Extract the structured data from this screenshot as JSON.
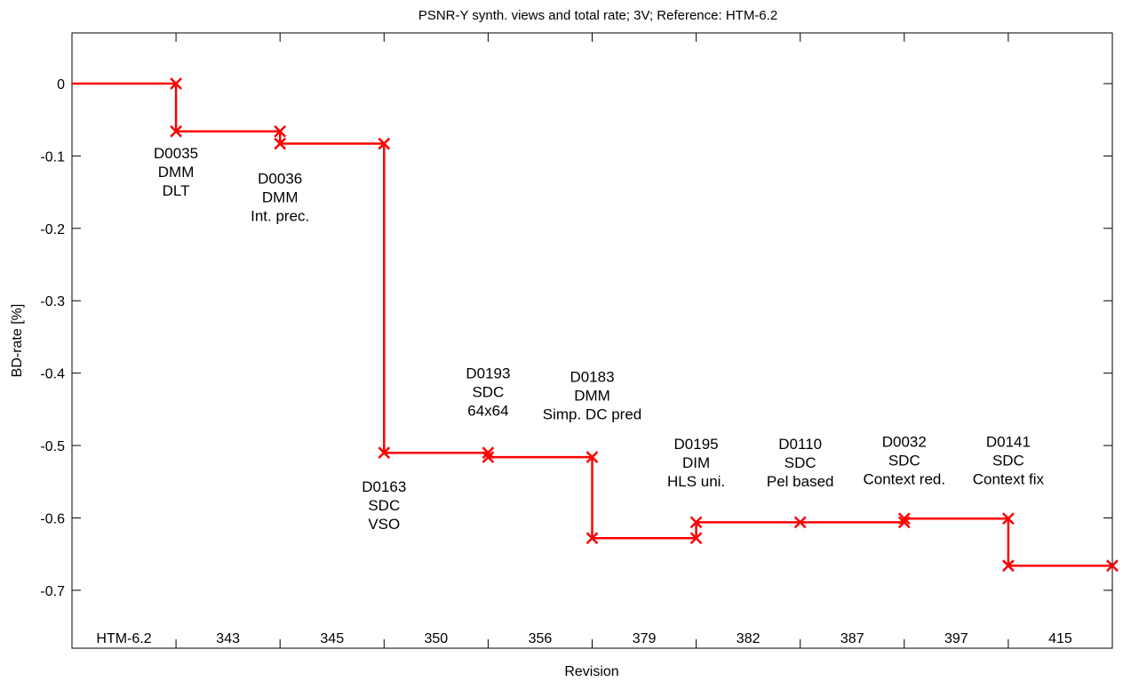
{
  "chart_data": {
    "type": "line",
    "title": "PSNR-Y synth. views and total rate; 3V; Reference: HTM-6.2",
    "xlabel": "Revision",
    "ylabel": "BD-rate [%]",
    "ylim": [
      -0.78,
      0.07
    ],
    "yticks": [
      0,
      -0.1,
      -0.2,
      -0.3,
      -0.4,
      -0.5,
      -0.6,
      -0.7
    ],
    "ytick_labels": [
      "0",
      "-0.1",
      "-0.2",
      "-0.3",
      "-0.4",
      "-0.5",
      "-0.6",
      "-0.7"
    ],
    "xlim": [
      0,
      10
    ],
    "grid": false,
    "line_color": "#ff0000",
    "revisions": [
      "HTM-6.2",
      "343",
      "345",
      "350",
      "356",
      "379",
      "382",
      "387",
      "397",
      "415"
    ],
    "points": [
      {
        "x": 1,
        "before": 0,
        "after": -0.066
      },
      {
        "x": 2,
        "before": -0.066,
        "after": -0.083
      },
      {
        "x": 3,
        "before": -0.083,
        "after": -0.51
      },
      {
        "x": 4,
        "before": -0.51,
        "after": -0.516
      },
      {
        "x": 5,
        "before": -0.516,
        "after": -0.628
      },
      {
        "x": 6,
        "before": -0.628,
        "after": -0.606
      },
      {
        "x": 7,
        "before": -0.606,
        "after": -0.606
      },
      {
        "x": 8,
        "before": -0.606,
        "after": -0.601
      },
      {
        "x": 9,
        "before": -0.601,
        "after": -0.666
      },
      {
        "x": 10,
        "before": -0.666,
        "after": -0.666
      }
    ],
    "annotations": [
      {
        "x": 1,
        "y": -0.103,
        "lines": [
          "D0035",
          "DMM",
          "DLT"
        ]
      },
      {
        "x": 2,
        "y": -0.138,
        "lines": [
          "D0036",
          "DMM",
          "Int. prec."
        ]
      },
      {
        "x": 3,
        "y": -0.564,
        "lines": [
          "D0163",
          "SDC",
          "VSO"
        ]
      },
      {
        "x": 4,
        "y": -0.407,
        "lines": [
          "D0193",
          "SDC",
          "64x64"
        ]
      },
      {
        "x": 5,
        "y": -0.412,
        "lines": [
          "D0183",
          "DMM",
          "Simp. DC pred"
        ]
      },
      {
        "x": 6,
        "y": -0.505,
        "lines": [
          "D0195",
          "DIM",
          "HLS uni."
        ]
      },
      {
        "x": 7,
        "y": -0.505,
        "lines": [
          "D0110",
          "SDC",
          "Pel based"
        ]
      },
      {
        "x": 8,
        "y": -0.502,
        "lines": [
          "D0032",
          "SDC",
          "Context red."
        ]
      },
      {
        "x": 9,
        "y": -0.502,
        "lines": [
          "D0141",
          "SDC",
          "Context fix"
        ]
      }
    ]
  }
}
